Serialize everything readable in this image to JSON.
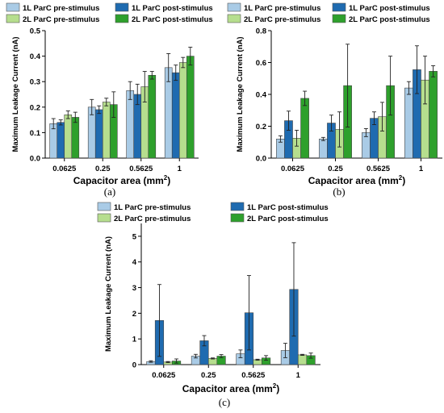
{
  "colors": {
    "1L ParC pre-stimulus": "#a9cbe6",
    "1L ParC post-stimulus": "#1f6bb0",
    "2L ParC pre-stimulus": "#b6de8e",
    "2L ParC post-stimulus": "#2ea02c"
  },
  "chart_data": [
    {
      "type": "bar",
      "panel_label": "(a)",
      "categories": [
        "0.0625",
        "0.25",
        "0.5625",
        "1"
      ],
      "xlabel": "Capacitor area (mm",
      "xlabel_sup": "2",
      "xlabel_end": ")",
      "ylabel": "Maximum Leakage Current (nA)",
      "ylim": [
        0,
        0.5
      ],
      "yticks": [
        "0.0",
        "0.1",
        "0.2",
        "0.3",
        "0.4",
        "0.5"
      ],
      "ytick_values": [
        0,
        0.1,
        0.2,
        0.3,
        0.4,
        0.5
      ],
      "legend": [
        "1L ParC pre-stimulus",
        "1L ParC post-stimulus",
        "2L ParC pre-stimulus",
        "2L ParC post-stimulus"
      ],
      "series": [
        {
          "name": "1L ParC pre-stimulus",
          "values": [
            0.135,
            0.2,
            0.265,
            0.355
          ],
          "errors": [
            0.02,
            0.03,
            0.035,
            0.055
          ]
        },
        {
          "name": "1L ParC post-stimulus",
          "values": [
            0.14,
            0.19,
            0.25,
            0.335
          ],
          "errors": [
            0.01,
            0.015,
            0.04,
            0.03
          ]
        },
        {
          "name": "2L ParC pre-stimulus",
          "values": [
            0.17,
            0.22,
            0.28,
            0.375
          ],
          "errors": [
            0.015,
            0.015,
            0.06,
            0.02
          ]
        },
        {
          "name": "2L ParC post-stimulus",
          "values": [
            0.16,
            0.21,
            0.325,
            0.4
          ],
          "errors": [
            0.02,
            0.05,
            0.015,
            0.035
          ]
        }
      ]
    },
    {
      "type": "bar",
      "panel_label": "(b)",
      "categories": [
        "0.0625",
        "0.25",
        "0.5625",
        "1"
      ],
      "xlabel": "Capacitor area (mm",
      "xlabel_sup": "2",
      "xlabel_end": ")",
      "ylabel": "Maximum Leakage Current (nA)",
      "ylim": [
        0,
        0.8
      ],
      "yticks": [
        "0.0",
        "0.2",
        "0.4",
        "0.6",
        "0.8"
      ],
      "ytick_values": [
        0,
        0.2,
        0.4,
        0.6,
        0.8
      ],
      "legend": [
        "1L ParC pre-stimulus",
        "1L ParC post-stimulus",
        "2L ParC pre-stimulus",
        "2L ParC post-stimulus"
      ],
      "series": [
        {
          "name": "1L ParC pre-stimulus",
          "values": [
            0.12,
            0.12,
            0.16,
            0.44
          ],
          "errors": [
            0.02,
            0.01,
            0.025,
            0.04
          ]
        },
        {
          "name": "1L ParC post-stimulus",
          "values": [
            0.235,
            0.22,
            0.25,
            0.555
          ],
          "errors": [
            0.06,
            0.05,
            0.04,
            0.15
          ]
        },
        {
          "name": "2L ParC pre-stimulus",
          "values": [
            0.125,
            0.18,
            0.26,
            0.49
          ],
          "errors": [
            0.05,
            0.11,
            0.09,
            0.15
          ]
        },
        {
          "name": "2L ParC post-stimulus",
          "values": [
            0.375,
            0.455,
            0.455,
            0.545
          ],
          "errors": [
            0.045,
            0.26,
            0.185,
            0.035
          ]
        }
      ]
    },
    {
      "type": "bar",
      "panel_label": "(c)",
      "categories": [
        "0.0625",
        "0.25",
        "0.5625",
        "1"
      ],
      "xlabel": "Capacitor area (mm",
      "xlabel_sup": "2",
      "xlabel_end": ")",
      "ylabel": "Maximum Leakage Current (nA)",
      "ylim": [
        0,
        5.5
      ],
      "yticks": [
        "0",
        "1",
        "2",
        "3",
        "4",
        "5"
      ],
      "ytick_values": [
        0,
        1,
        2,
        3,
        4,
        5
      ],
      "legend": [
        "1L ParC pre-stimulus",
        "1L ParC post-stimulus",
        "2L ParC pre-stimulus",
        "2L ParC post-stimulus"
      ],
      "series": [
        {
          "name": "1L ParC pre-stimulus",
          "values": [
            0.12,
            0.33,
            0.42,
            0.55
          ],
          "errors": [
            0.03,
            0.07,
            0.15,
            0.28
          ]
        },
        {
          "name": "1L ParC post-stimulus",
          "values": [
            1.72,
            0.93,
            2.02,
            2.93
          ],
          "errors": [
            1.4,
            0.2,
            1.45,
            1.82
          ]
        },
        {
          "name": "2L ParC pre-stimulus",
          "values": [
            0.1,
            0.24,
            0.19,
            0.38
          ],
          "errors": [
            0.02,
            0.02,
            0.02,
            0.02
          ]
        },
        {
          "name": "2L ParC post-stimulus",
          "values": [
            0.14,
            0.33,
            0.26,
            0.35
          ],
          "errors": [
            0.08,
            0.06,
            0.09,
            0.1
          ]
        }
      ]
    }
  ]
}
